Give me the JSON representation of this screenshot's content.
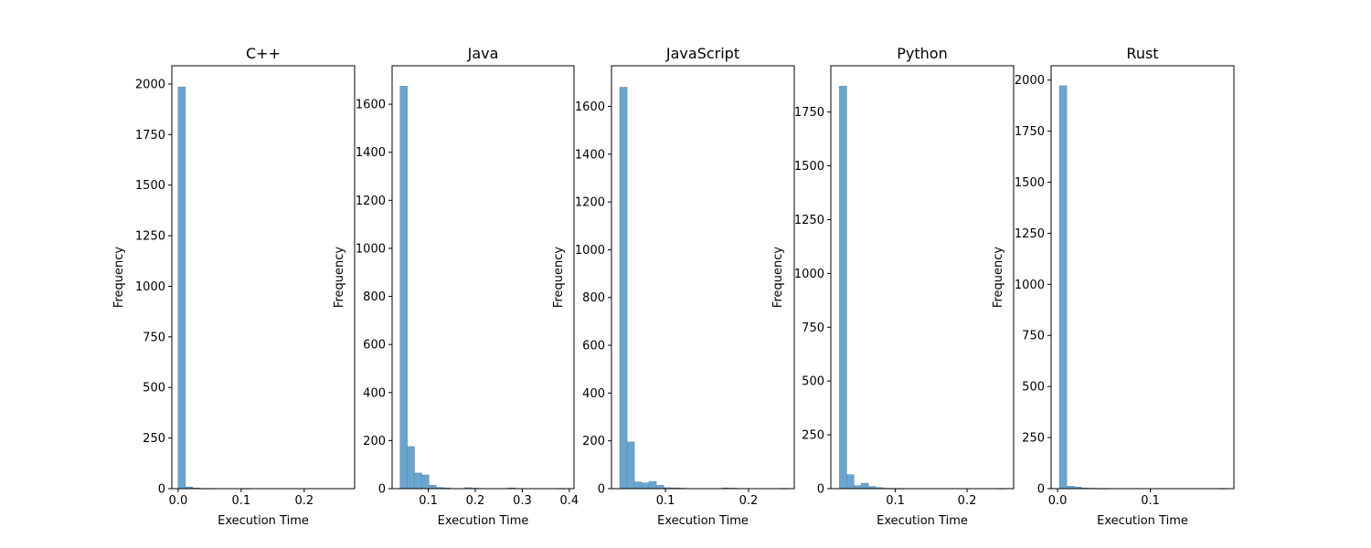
{
  "chart_data": [
    {
      "type": "histogram",
      "title": "C++",
      "xlabel": "Execution Time",
      "ylabel": "Frequency",
      "xlim": [
        -0.01,
        0.28
      ],
      "ylim": [
        0,
        2090
      ],
      "xticks": [
        0.0,
        0.1,
        0.2
      ],
      "xtick_labels": [
        "0.0",
        "0.1",
        "0.2"
      ],
      "yticks": [
        0,
        250,
        500,
        750,
        1000,
        1250,
        1500,
        1750,
        2000
      ],
      "ytick_labels": [
        "0",
        "250",
        "500",
        "750",
        "1000",
        "1250",
        "1500",
        "1750",
        "2000"
      ],
      "bin_width": 0.0115,
      "bin_start": 0.0,
      "values": [
        1985,
        8,
        3,
        1,
        1,
        0,
        0,
        0,
        0,
        1,
        0,
        0,
        0,
        0,
        0,
        0,
        0,
        0,
        0,
        0,
        0,
        0,
        0
      ],
      "color": "#6aa5cf",
      "edge_color": "#5f8fb0"
    },
    {
      "type": "histogram",
      "title": "Java",
      "xlabel": "Execution Time",
      "ylabel": "Frequency",
      "xlim": [
        0.023,
        0.41
      ],
      "ylim": [
        0,
        1760
      ],
      "xticks": [
        0.1,
        0.2,
        0.3,
        0.4
      ],
      "xtick_labels": [
        "0.1",
        "0.2",
        "0.3",
        "0.4"
      ],
      "yticks": [
        0,
        200,
        400,
        600,
        800,
        1000,
        1200,
        1400,
        1600
      ],
      "ytick_labels": [
        "0",
        "200",
        "400",
        "600",
        "800",
        "1000",
        "1200",
        "1400",
        "1600"
      ],
      "bin_width": 0.0153,
      "bin_start": 0.04,
      "values": [
        1675,
        175,
        65,
        57,
        14,
        5,
        3,
        0,
        0,
        4,
        2,
        0,
        0,
        0,
        0,
        3,
        0,
        0,
        0,
        0,
        0,
        0,
        1
      ],
      "color": "#6aa5cf",
      "edge_color": "#5f8fb0"
    },
    {
      "type": "histogram",
      "title": "JavaScript",
      "xlabel": "Execution Time",
      "ylabel": "Frequency",
      "xlim": [
        0.035,
        0.255
      ],
      "ylim": [
        0,
        1770
      ],
      "xticks": [
        0.1,
        0.2
      ],
      "xtick_labels": [
        "0.1",
        "0.2"
      ],
      "yticks": [
        0,
        200,
        400,
        600,
        800,
        1000,
        1200,
        1400,
        1600
      ],
      "ytick_labels": [
        "0",
        "200",
        "400",
        "600",
        "800",
        "1000",
        "1200",
        "1400",
        "1600"
      ],
      "bin_width": 0.0088,
      "bin_start": 0.045,
      "values": [
        1680,
        195,
        28,
        24,
        30,
        14,
        4,
        3,
        2,
        0,
        0,
        0,
        0,
        0,
        3,
        2,
        0,
        0,
        0,
        0,
        0,
        0,
        1
      ],
      "color": "#6aa5cf",
      "edge_color": "#5f8fb0"
    },
    {
      "type": "histogram",
      "title": "Python",
      "xlabel": "Execution Time",
      "ylabel": "Frequency",
      "xlim": [
        0.01,
        0.265
      ],
      "ylim": [
        0,
        1965
      ],
      "xticks": [
        0.1,
        0.2
      ],
      "xtick_labels": [
        "0.1",
        "0.2"
      ],
      "yticks": [
        0,
        250,
        500,
        750,
        1000,
        1250,
        1500,
        1750
      ],
      "ytick_labels": [
        "0",
        "250",
        "500",
        "750",
        "1000",
        "1250",
        "1500",
        "1750"
      ],
      "bin_width": 0.0101,
      "bin_start": 0.022,
      "values": [
        1870,
        65,
        14,
        25,
        10,
        5,
        2,
        1,
        1,
        0,
        0,
        0,
        0,
        0,
        0,
        0,
        0,
        0,
        0,
        0,
        0,
        0,
        1
      ],
      "color": "#6aa5cf",
      "edge_color": "#5f8fb0"
    },
    {
      "type": "histogram",
      "title": "Rust",
      "xlabel": "Execution Time",
      "ylabel": "Frequency",
      "xlim": [
        -0.007,
        0.19
      ],
      "ylim": [
        0,
        2070
      ],
      "xticks": [
        0.0,
        0.1
      ],
      "xtick_labels": [
        "0.0",
        "0.1"
      ],
      "yticks": [
        0,
        250,
        500,
        750,
        1000,
        1250,
        1500,
        1750,
        2000
      ],
      "ytick_labels": [
        "0",
        "250",
        "500",
        "750",
        "1000",
        "1250",
        "1500",
        "1750",
        "2000"
      ],
      "bin_width": 0.0078,
      "bin_start": 0.002,
      "values": [
        1972,
        12,
        8,
        3,
        2,
        1,
        1,
        0,
        0,
        0,
        0,
        0,
        0,
        0,
        0,
        0,
        0,
        0,
        0,
        0,
        0,
        0,
        1
      ],
      "color": "#6aa5cf",
      "edge_color": "#5f8fb0"
    }
  ]
}
